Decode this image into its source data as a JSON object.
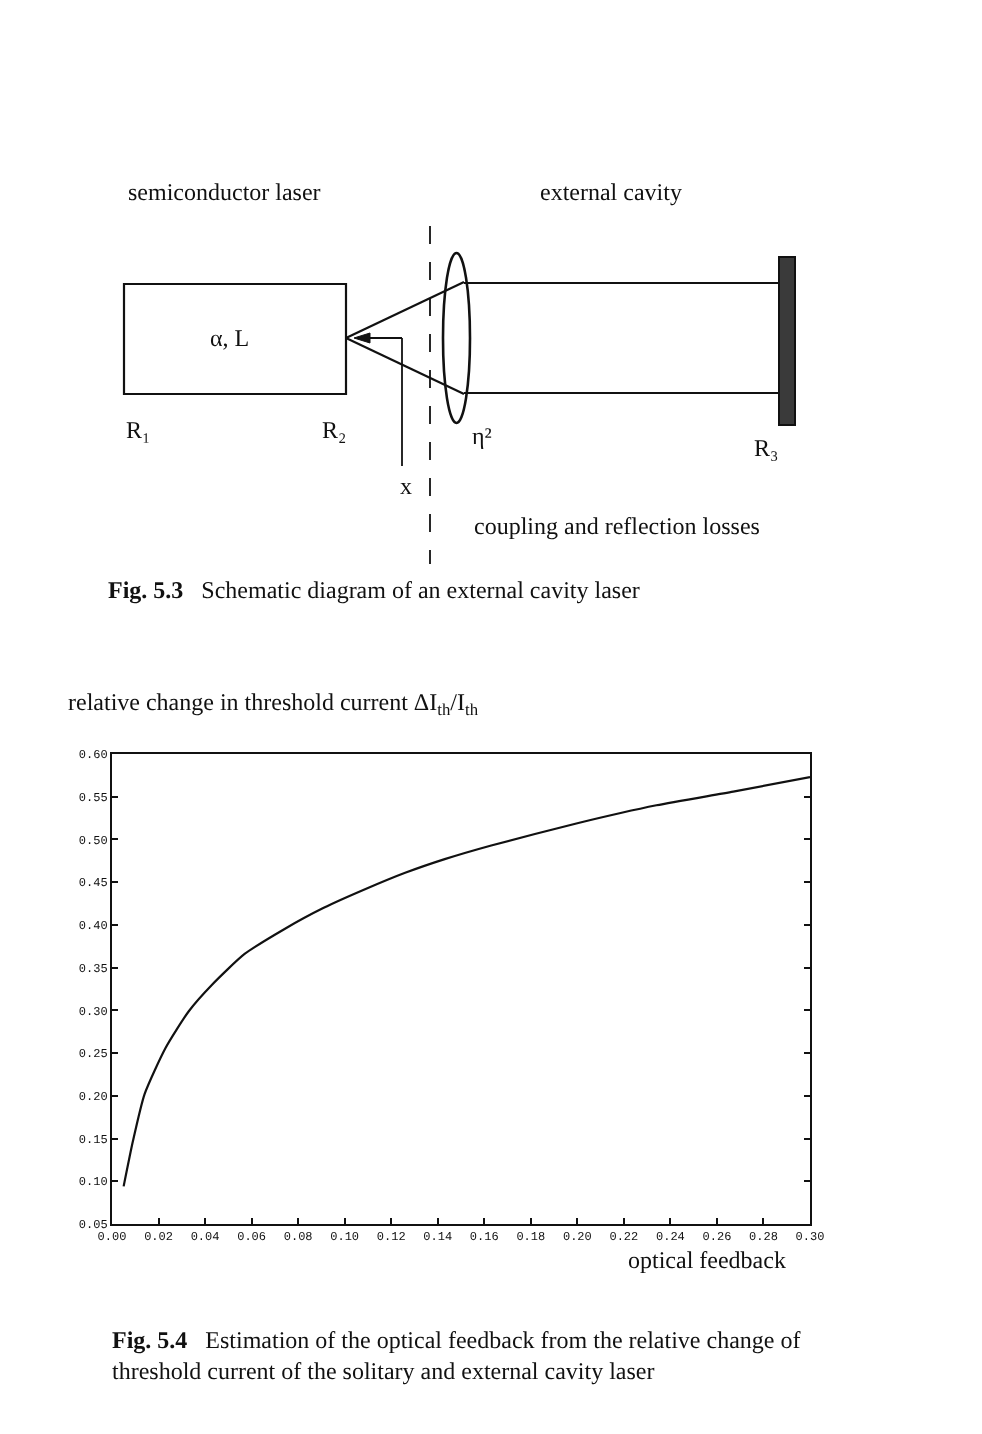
{
  "chart_data": [
    {
      "type": "other",
      "annotations": [
        "semiconductor laser",
        "external cavity",
        "α, L",
        "R₁",
        "R₂",
        "η²",
        "R₃",
        "x",
        "coupling and reflection losses",
        "Fig. 5.3",
        "Schematic diagram of an external cavity laser"
      ]
    },
    {
      "type": "line",
      "ylabel": "relative change in threshold current ΔI$_{th}$/I$_{th}$",
      "xlabel": "optical feedback",
      "color": "#111111",
      "x": [
        0.005,
        0.009,
        0.014,
        0.023,
        0.033,
        0.043,
        0.057,
        0.074,
        0.091,
        0.109,
        0.126,
        0.143,
        0.163,
        0.2,
        0.234,
        0.267,
        0.3
      ],
      "values": [
        0.094,
        0.147,
        0.202,
        0.256,
        0.299,
        0.33,
        0.366,
        0.395,
        0.42,
        0.442,
        0.461,
        0.477,
        0.493,
        0.519,
        0.54,
        0.556,
        0.573
      ],
      "xlim": [
        0,
        0.3
      ],
      "ylim": [
        0.05,
        0.6
      ],
      "xticks": [
        {
          "value": 0,
          "label": "0.00"
        },
        {
          "value": 0.02,
          "label": "0.02"
        },
        {
          "value": 0.04,
          "label": "0.04"
        },
        {
          "value": 0.06,
          "label": "0.06"
        },
        {
          "value": 0.08,
          "label": "0.08"
        },
        {
          "value": 0.1,
          "label": "0.10"
        },
        {
          "value": 0.12,
          "label": "0.12"
        },
        {
          "value": 0.14,
          "label": "0.14"
        },
        {
          "value": 0.16,
          "label": "0.16"
        },
        {
          "value": 0.18,
          "label": "0.18"
        },
        {
          "value": 0.2,
          "label": "0.20"
        },
        {
          "value": 0.22,
          "label": "0.22"
        },
        {
          "value": 0.24,
          "label": "0.24"
        },
        {
          "value": 0.26,
          "label": "0.26"
        },
        {
          "value": 0.28,
          "label": "0.28"
        },
        {
          "value": 0.3,
          "label": "0.30"
        }
      ],
      "yticks": [
        {
          "value": 0.05,
          "label": "0.05"
        },
        {
          "value": 0.1,
          "label": "0.10"
        },
        {
          "value": 0.15,
          "label": "0.15"
        },
        {
          "value": 0.2,
          "label": "0.20"
        },
        {
          "value": 0.25,
          "label": "0.25"
        },
        {
          "value": 0.3,
          "label": "0.30"
        },
        {
          "value": 0.35,
          "label": "0.35"
        },
        {
          "value": 0.4,
          "label": "0.40"
        },
        {
          "value": 0.45,
          "label": "0.45"
        },
        {
          "value": 0.5,
          "label": "0.50"
        },
        {
          "value": 0.55,
          "label": "0.55"
        },
        {
          "value": 0.6,
          "label": "0.60"
        }
      ],
      "annotations": [
        "Fig. 5.4",
        "Estimation of the optical feedback from the relative change of threshold current of the solitary and external cavity laser"
      ]
    }
  ]
}
